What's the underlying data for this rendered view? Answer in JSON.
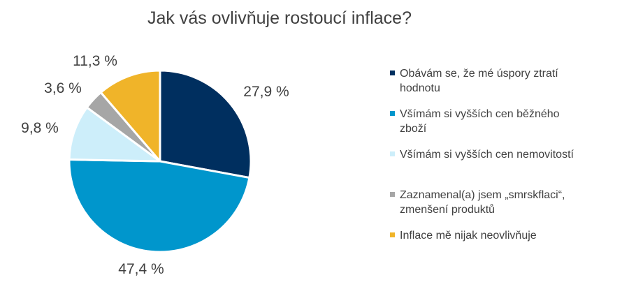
{
  "chart_data": {
    "type": "pie",
    "title": "Jak vás ovlivňuje rostoucí inflace?",
    "slices": [
      {
        "label": "Obávám se, že mé úspory ztratí hodnotu",
        "legend_label": "Obávám se, že mé úspory ztratí\nhodnotu",
        "value": 27.9,
        "value_label": "27,9 %",
        "color": "#002f5f"
      },
      {
        "label": "Všímám si vyšších cen běžného zboží",
        "legend_label": "Všímám si vyšších cen běžného\nzboží",
        "value": 47.4,
        "value_label": "47,4 %",
        "color": "#0096cc"
      },
      {
        "label": "Všímám si vyšších cen nemovitostí",
        "legend_label": "Všímám si vyšších cen nemovitostí",
        "value": 9.8,
        "value_label": "9,8 %",
        "color": "#cdeefa"
      },
      {
        "label": "Zaznamenal(a) jsem „smrskflaci“, zmenšení produktů",
        "legend_label": "Zaznamenal(a) jsem „smrskflaci“,\nzmenšení produktů",
        "value": 3.6,
        "value_label": "3,6 %",
        "color": "#a6a6a6"
      },
      {
        "label": "Inflace mě nijak neovlivňuje",
        "legend_label": "Inflace mě nijak neovlivňuje",
        "value": 11.3,
        "value_label": "11,3 %",
        "color": "#f0b429"
      }
    ],
    "legend_position": "right"
  }
}
